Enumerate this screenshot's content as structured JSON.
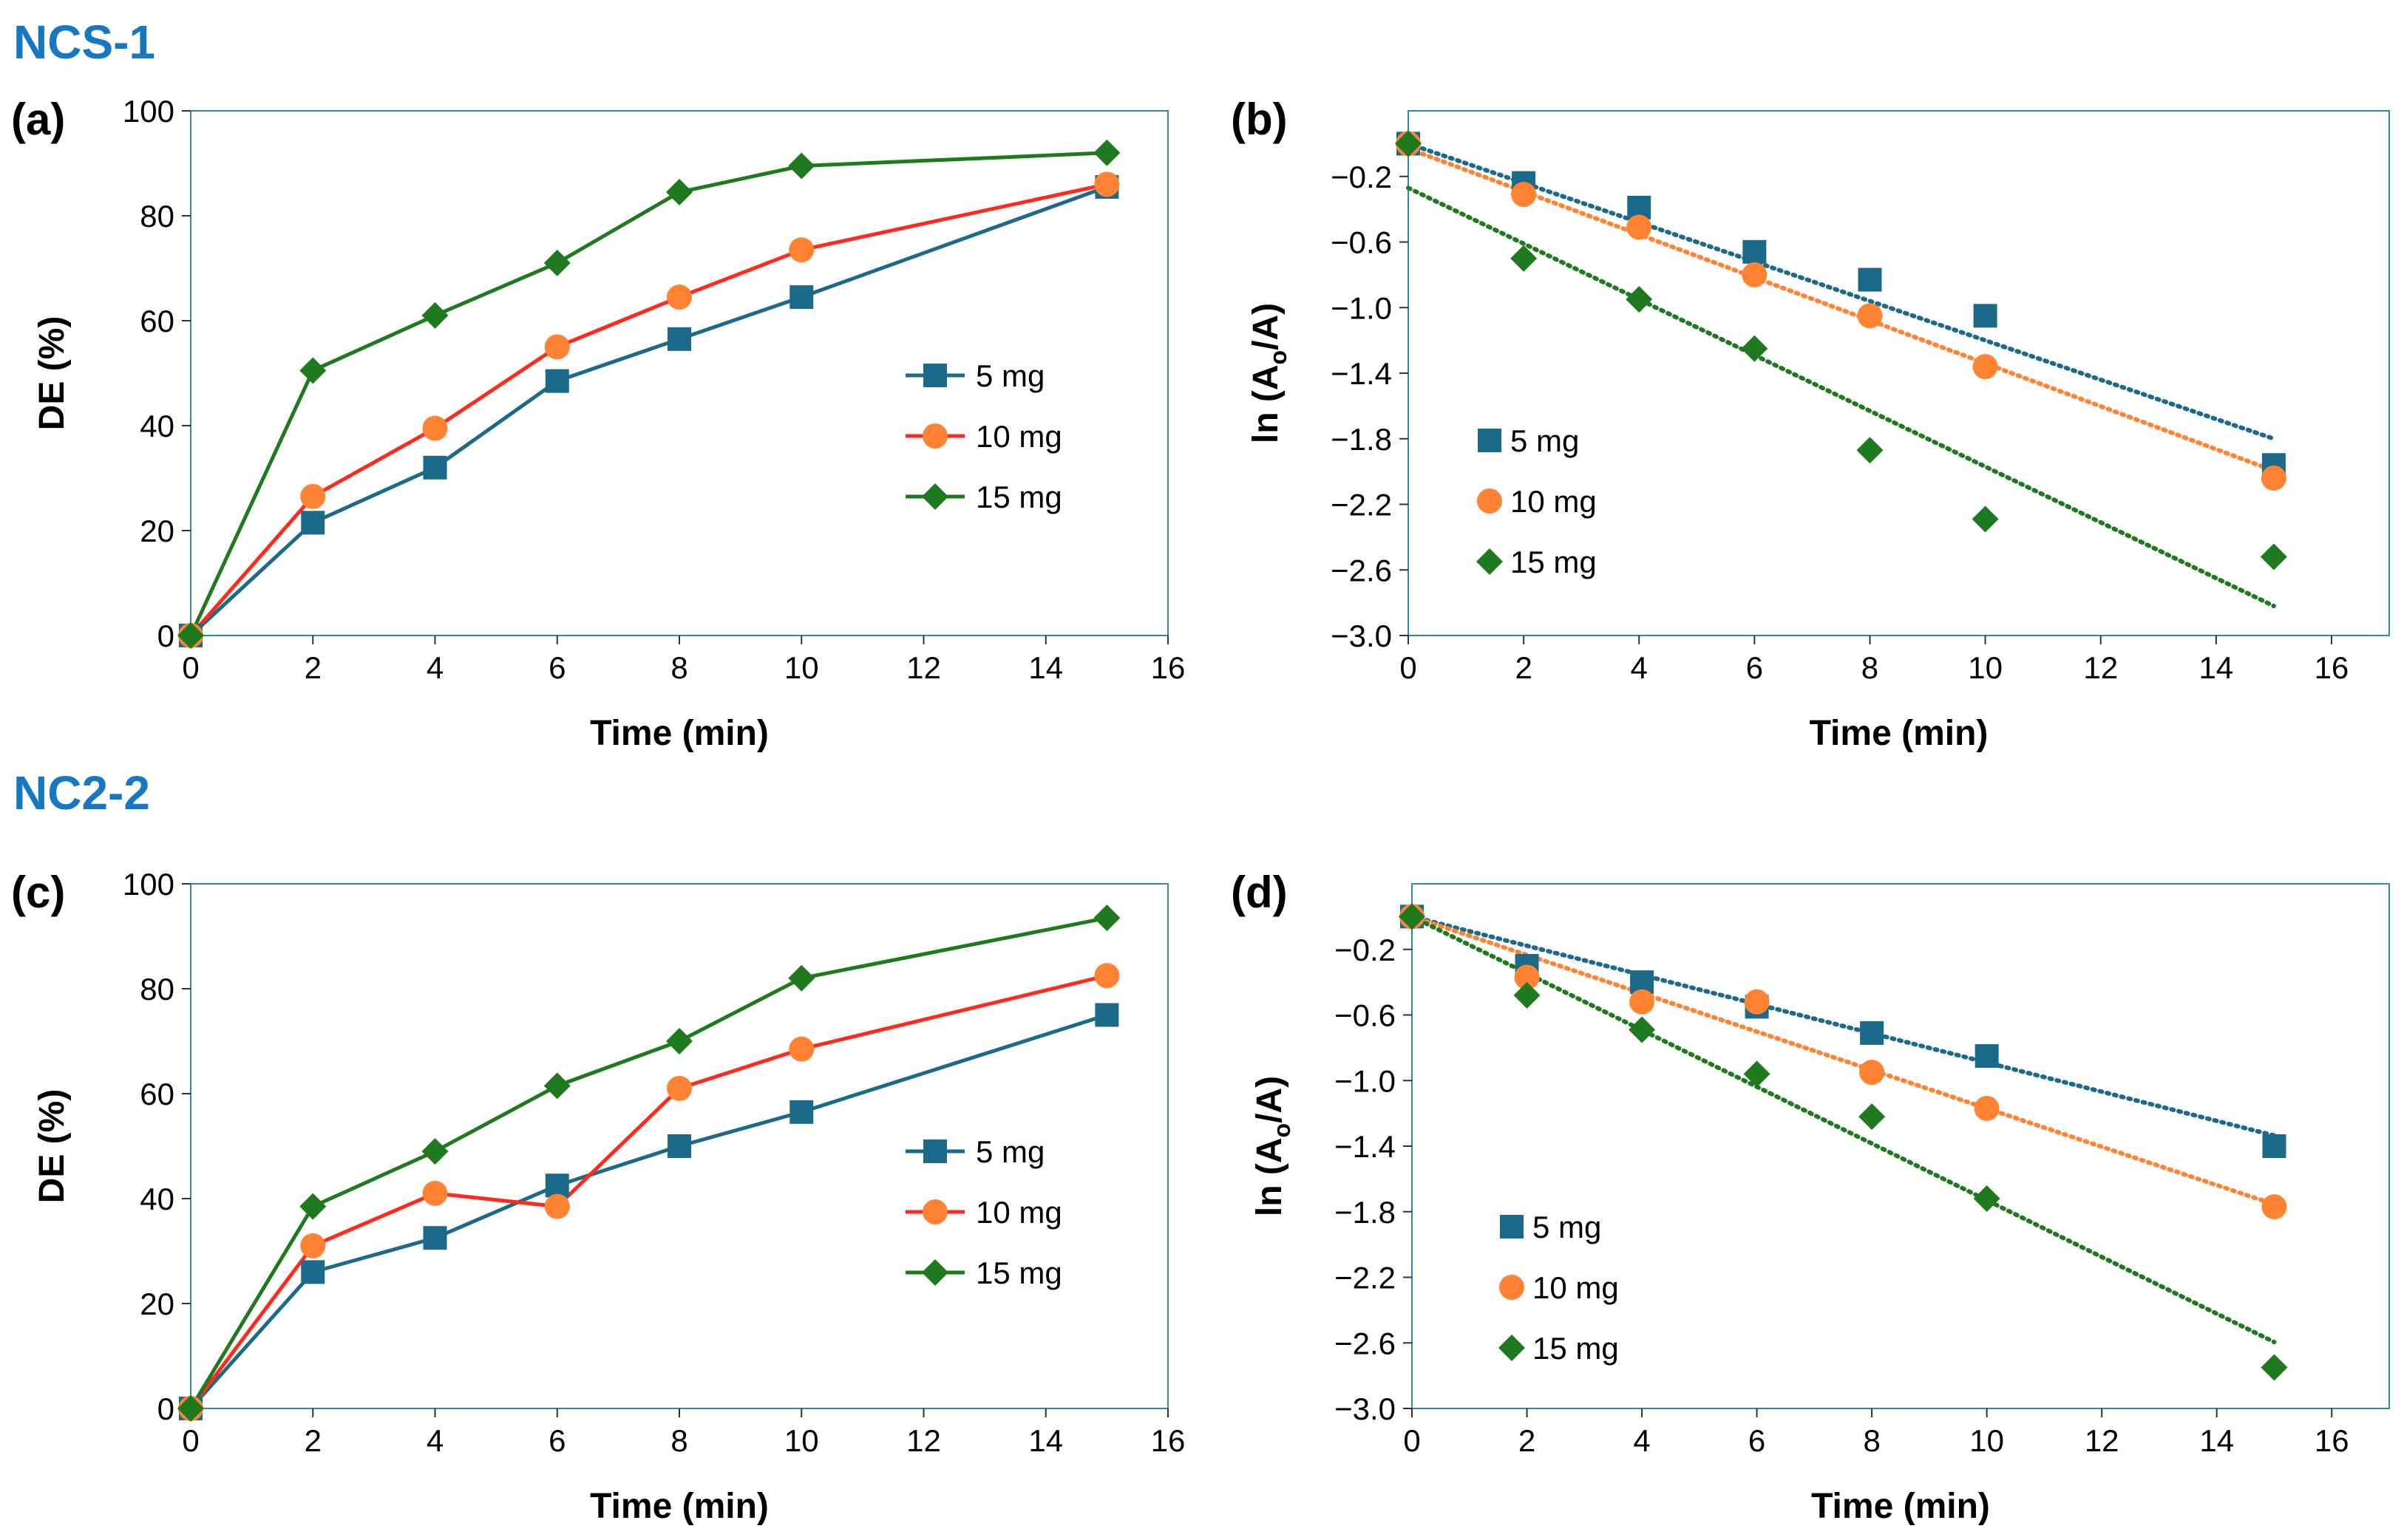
{
  "sections": [
    {
      "title": "NCS-1"
    },
    {
      "title": "NC2-2"
    }
  ],
  "colors": {
    "s5": "#1B6A8A",
    "s10line": "#FF2A1C",
    "s10marker": "#FF8332",
    "s15": "#1F7A1F",
    "frame": "#2E8AA8",
    "title": "#1778C2"
  },
  "chart_data": [
    {
      "panel": "(a)",
      "type": "line",
      "title": "",
      "xlabel": "Time (min)",
      "ylabel": "DE (%)",
      "xlim": [
        0,
        16
      ],
      "ylim": [
        0,
        100
      ],
      "xticks": [
        0,
        2,
        4,
        6,
        8,
        10,
        12,
        14,
        16
      ],
      "yticks": [
        0,
        20,
        40,
        60,
        80,
        100
      ],
      "ytick_labels": [
        "0",
        "20",
        "40",
        "60",
        "80",
        "100"
      ],
      "x": [
        0,
        2,
        4,
        6,
        8,
        10,
        15
      ],
      "series": [
        {
          "name": "5 mg",
          "marker": "square",
          "values": [
            0,
            21.5,
            32,
            48.5,
            56.5,
            64.5,
            85.5
          ]
        },
        {
          "name": "10 mg",
          "marker": "circle",
          "values": [
            0,
            26.5,
            39.5,
            55,
            64.5,
            73.5,
            86
          ]
        },
        {
          "name": "15 mg",
          "marker": "diamond",
          "values": [
            0,
            50.5,
            61,
            71,
            84.5,
            89.5,
            92
          ]
        }
      ],
      "legend": "right-middle",
      "lines": true
    },
    {
      "panel": "(b)",
      "type": "scatter",
      "title": "",
      "xlabel": "Time (min)",
      "ylabel": "ln (Ao/A)",
      "ylabel_main": "ln (A",
      "ylabel_sub": "o",
      "ylabel_end": "/A)",
      "xlim": [
        0,
        17
      ],
      "ylim": [
        -3.0,
        0.2
      ],
      "xticks": [
        0,
        2,
        4,
        6,
        8,
        10,
        12,
        14,
        16
      ],
      "yticks": [
        -0.2,
        -0.6,
        -1.0,
        -1.4,
        -1.8,
        -2.2,
        -2.6,
        -3.0
      ],
      "ytick_labels": [
        "-0.2",
        "-0.6",
        "-1.0",
        "-1.4",
        "-1.8",
        "-2.2",
        "-2.6",
        "-3.0"
      ],
      "x": [
        0,
        2,
        4,
        6,
        8,
        10,
        15
      ],
      "series": [
        {
          "name": "5 mg",
          "marker": "square",
          "values": [
            0,
            -0.24,
            -0.39,
            -0.66,
            -0.83,
            -1.05,
            -1.96
          ],
          "trend": [
            0.0,
            -0.12
          ]
        },
        {
          "name": "10 mg",
          "marker": "circle",
          "values": [
            0,
            -0.31,
            -0.51,
            -0.8,
            -1.05,
            -1.36,
            -2.04
          ],
          "trend": [
            -0.03,
            -0.131
          ]
        },
        {
          "name": "15 mg",
          "marker": "diamond",
          "values": [
            0,
            -0.7,
            -0.95,
            -1.25,
            -1.87,
            -2.29,
            -2.52
          ],
          "trend": [
            -0.27,
            -0.17
          ]
        }
      ],
      "legend": "left-bottom",
      "lines": false
    },
    {
      "panel": "(c)",
      "type": "line",
      "title": "",
      "xlabel": "Time (min)",
      "ylabel": "DE (%)",
      "xlim": [
        0,
        16
      ],
      "ylim": [
        0,
        100
      ],
      "xticks": [
        0,
        2,
        4,
        6,
        8,
        10,
        12,
        14,
        16
      ],
      "yticks": [
        0,
        20,
        40,
        60,
        80,
        100
      ],
      "ytick_labels": [
        "0",
        "20",
        "40",
        "60",
        "80",
        "100"
      ],
      "x": [
        0,
        2,
        4,
        6,
        8,
        10,
        15
      ],
      "series": [
        {
          "name": "5 mg",
          "marker": "square",
          "values": [
            0,
            26,
            32.5,
            42.5,
            50,
            56.5,
            75
          ]
        },
        {
          "name": "10 mg",
          "marker": "circle",
          "values": [
            0,
            31,
            41,
            38.5,
            61,
            68.5,
            82.5
          ]
        },
        {
          "name": "15 mg",
          "marker": "diamond",
          "values": [
            0,
            38.5,
            49,
            61.5,
            70,
            82,
            93.5
          ]
        }
      ],
      "legend": "right-middle",
      "lines": true
    },
    {
      "panel": "(d)",
      "type": "scatter",
      "title": "",
      "xlabel": "Time (min)",
      "ylabel": "ln (Ao/A)",
      "ylabel_main": "ln (A",
      "ylabel_sub": "o",
      "ylabel_end": "/A)",
      "xlim": [
        0,
        17
      ],
      "ylim": [
        -3.0,
        0.2
      ],
      "xticks": [
        0,
        2,
        4,
        6,
        8,
        10,
        12,
        14,
        16
      ],
      "yticks": [
        -0.2,
        -0.6,
        -1.0,
        -1.4,
        -1.8,
        -2.2,
        -2.6,
        -3.0
      ],
      "ytick_labels": [
        "-0.2",
        "-0.6",
        "-1.0",
        "-1.4",
        "-1.8",
        "-2.2",
        "-2.6",
        "-3.0"
      ],
      "x": [
        0,
        2,
        4,
        6,
        8,
        10,
        15
      ],
      "series": [
        {
          "name": "5 mg",
          "marker": "square",
          "values": [
            0,
            -0.3,
            -0.4,
            -0.55,
            -0.71,
            -0.85,
            -1.4
          ],
          "trend": [
            0.0,
            -0.089
          ]
        },
        {
          "name": "10 mg",
          "marker": "circle",
          "values": [
            0,
            -0.37,
            -0.52,
            -0.52,
            -0.95,
            -1.17,
            -1.77
          ],
          "trend": [
            0.0,
            -0.117
          ]
        },
        {
          "name": "15 mg",
          "marker": "diamond",
          "values": [
            0,
            -0.48,
            -0.69,
            -0.96,
            -1.22,
            -1.72,
            -2.75
          ],
          "trend": [
            0.0,
            -0.173
          ]
        }
      ],
      "legend": "left-bottom",
      "lines": false
    }
  ]
}
